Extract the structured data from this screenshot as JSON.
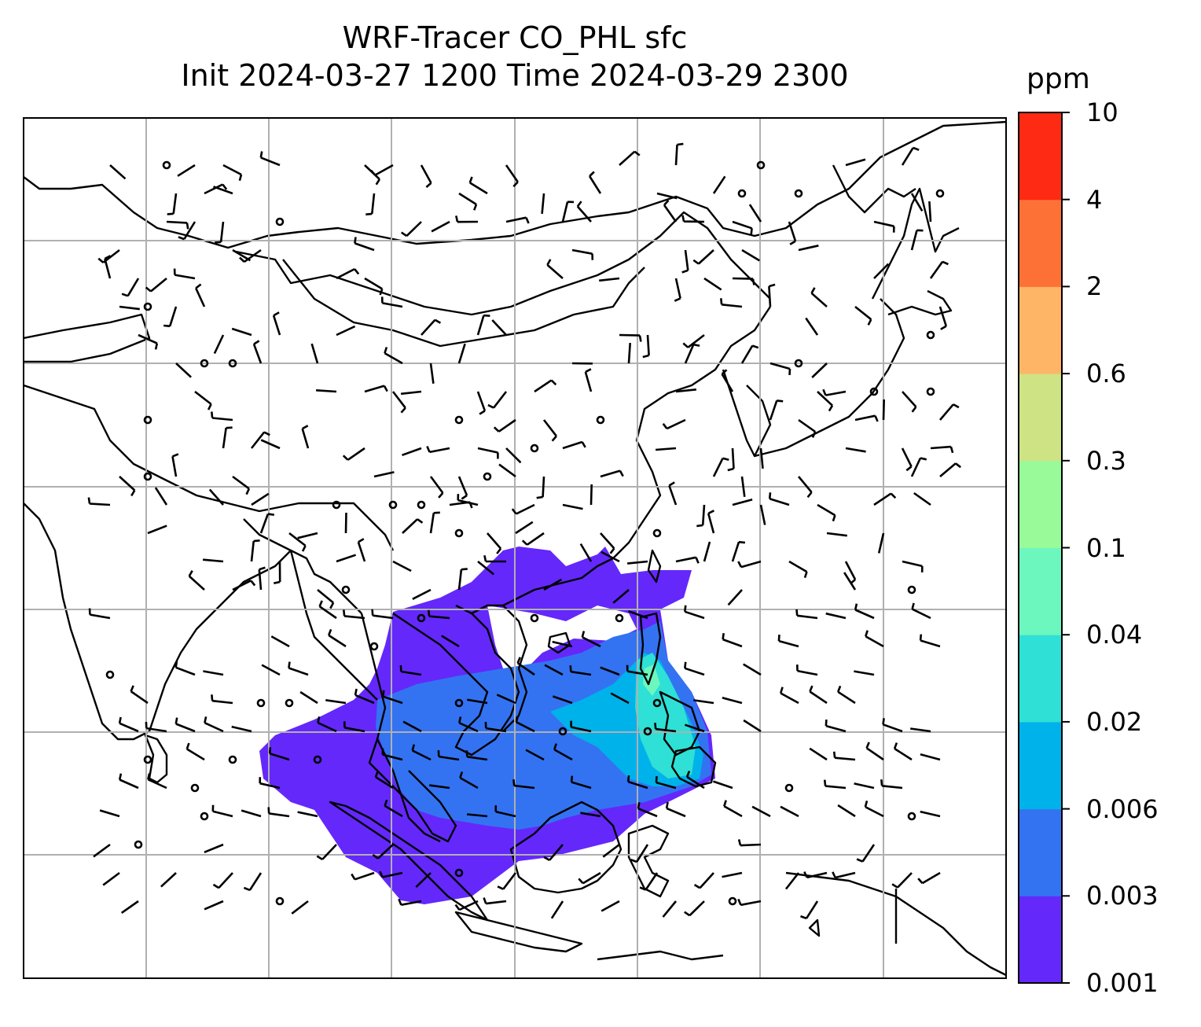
{
  "title": {
    "line1": "WRF-Tracer CO_PHL sfc",
    "line2": "Init 2024-03-27 1200 Time 2024-03-29 2300"
  },
  "colorbar": {
    "unit": "ppm",
    "levels": [
      "0.001",
      "0.003",
      "0.006",
      "0.02",
      "0.04",
      "0.1",
      "0.3",
      "0.6",
      "2",
      "4",
      "10"
    ],
    "colors": [
      "#6428fb",
      "#3373f2",
      "#00b2ea",
      "#2ee0d6",
      "#6cf7bf",
      "#98fa98",
      "#cde384",
      "#feb666",
      "#fd7136",
      "#ff2a14"
    ]
  },
  "map": {
    "gridlines": true,
    "coastline_color": "#000000",
    "wind_barb_color": "#000000"
  }
}
